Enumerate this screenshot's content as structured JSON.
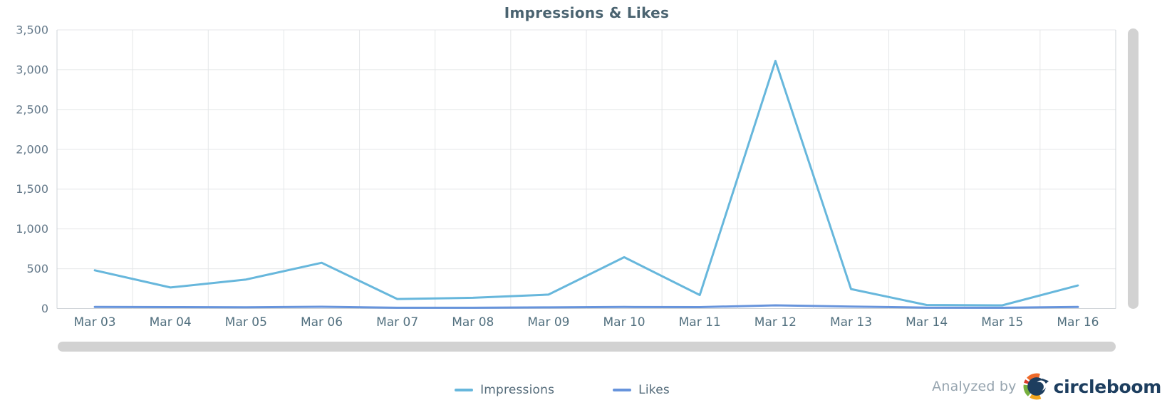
{
  "chart": {
    "title": "Impressions & Likes"
  },
  "chart_data": {
    "type": "line",
    "title": "Impressions & Likes",
    "categories": [
      "Mar 03",
      "Mar 04",
      "Mar 05",
      "Mar 06",
      "Mar 07",
      "Mar 08",
      "Mar 09",
      "Mar 10",
      "Mar 11",
      "Mar 12",
      "Mar 13",
      "Mar 14",
      "Mar 15",
      "Mar 16"
    ],
    "series": [
      {
        "name": "Impressions",
        "color": "#67b7dc",
        "values": [
          480,
          265,
          365,
          575,
          120,
          135,
          175,
          645,
          170,
          3110,
          245,
          45,
          40,
          290
        ]
      },
      {
        "name": "Likes",
        "color": "#6794dc",
        "values": [
          20,
          18,
          15,
          22,
          10,
          10,
          14,
          20,
          18,
          40,
          25,
          12,
          10,
          20
        ]
      }
    ],
    "xlabel": "",
    "ylabel": "",
    "ylim": [
      0,
      3500
    ],
    "ytick_step": 500,
    "ytick_labels": [
      "0",
      "500",
      "1,000",
      "1,500",
      "2,000",
      "2,500",
      "3,000",
      "3,500"
    ],
    "grid": true,
    "grid_style": "full-box-with-category-boundaries",
    "legend_position": "bottom"
  },
  "branding": {
    "analyzed_by": "Analyzed by",
    "brand_name": "circleboom"
  },
  "colors": {
    "grid": "#e4e6e8",
    "axis_border": "#cfd4d8",
    "y_tick_text": "#64798a",
    "x_tick_text": "#52707f",
    "scrollbar": "#d2d2d2",
    "brand_navy": "#1d3e5f",
    "logo_orange": "#ee6a2a",
    "logo_red": "#d93a2b",
    "logo_green": "#77b03f",
    "logo_yellow": "#f3a71f"
  }
}
